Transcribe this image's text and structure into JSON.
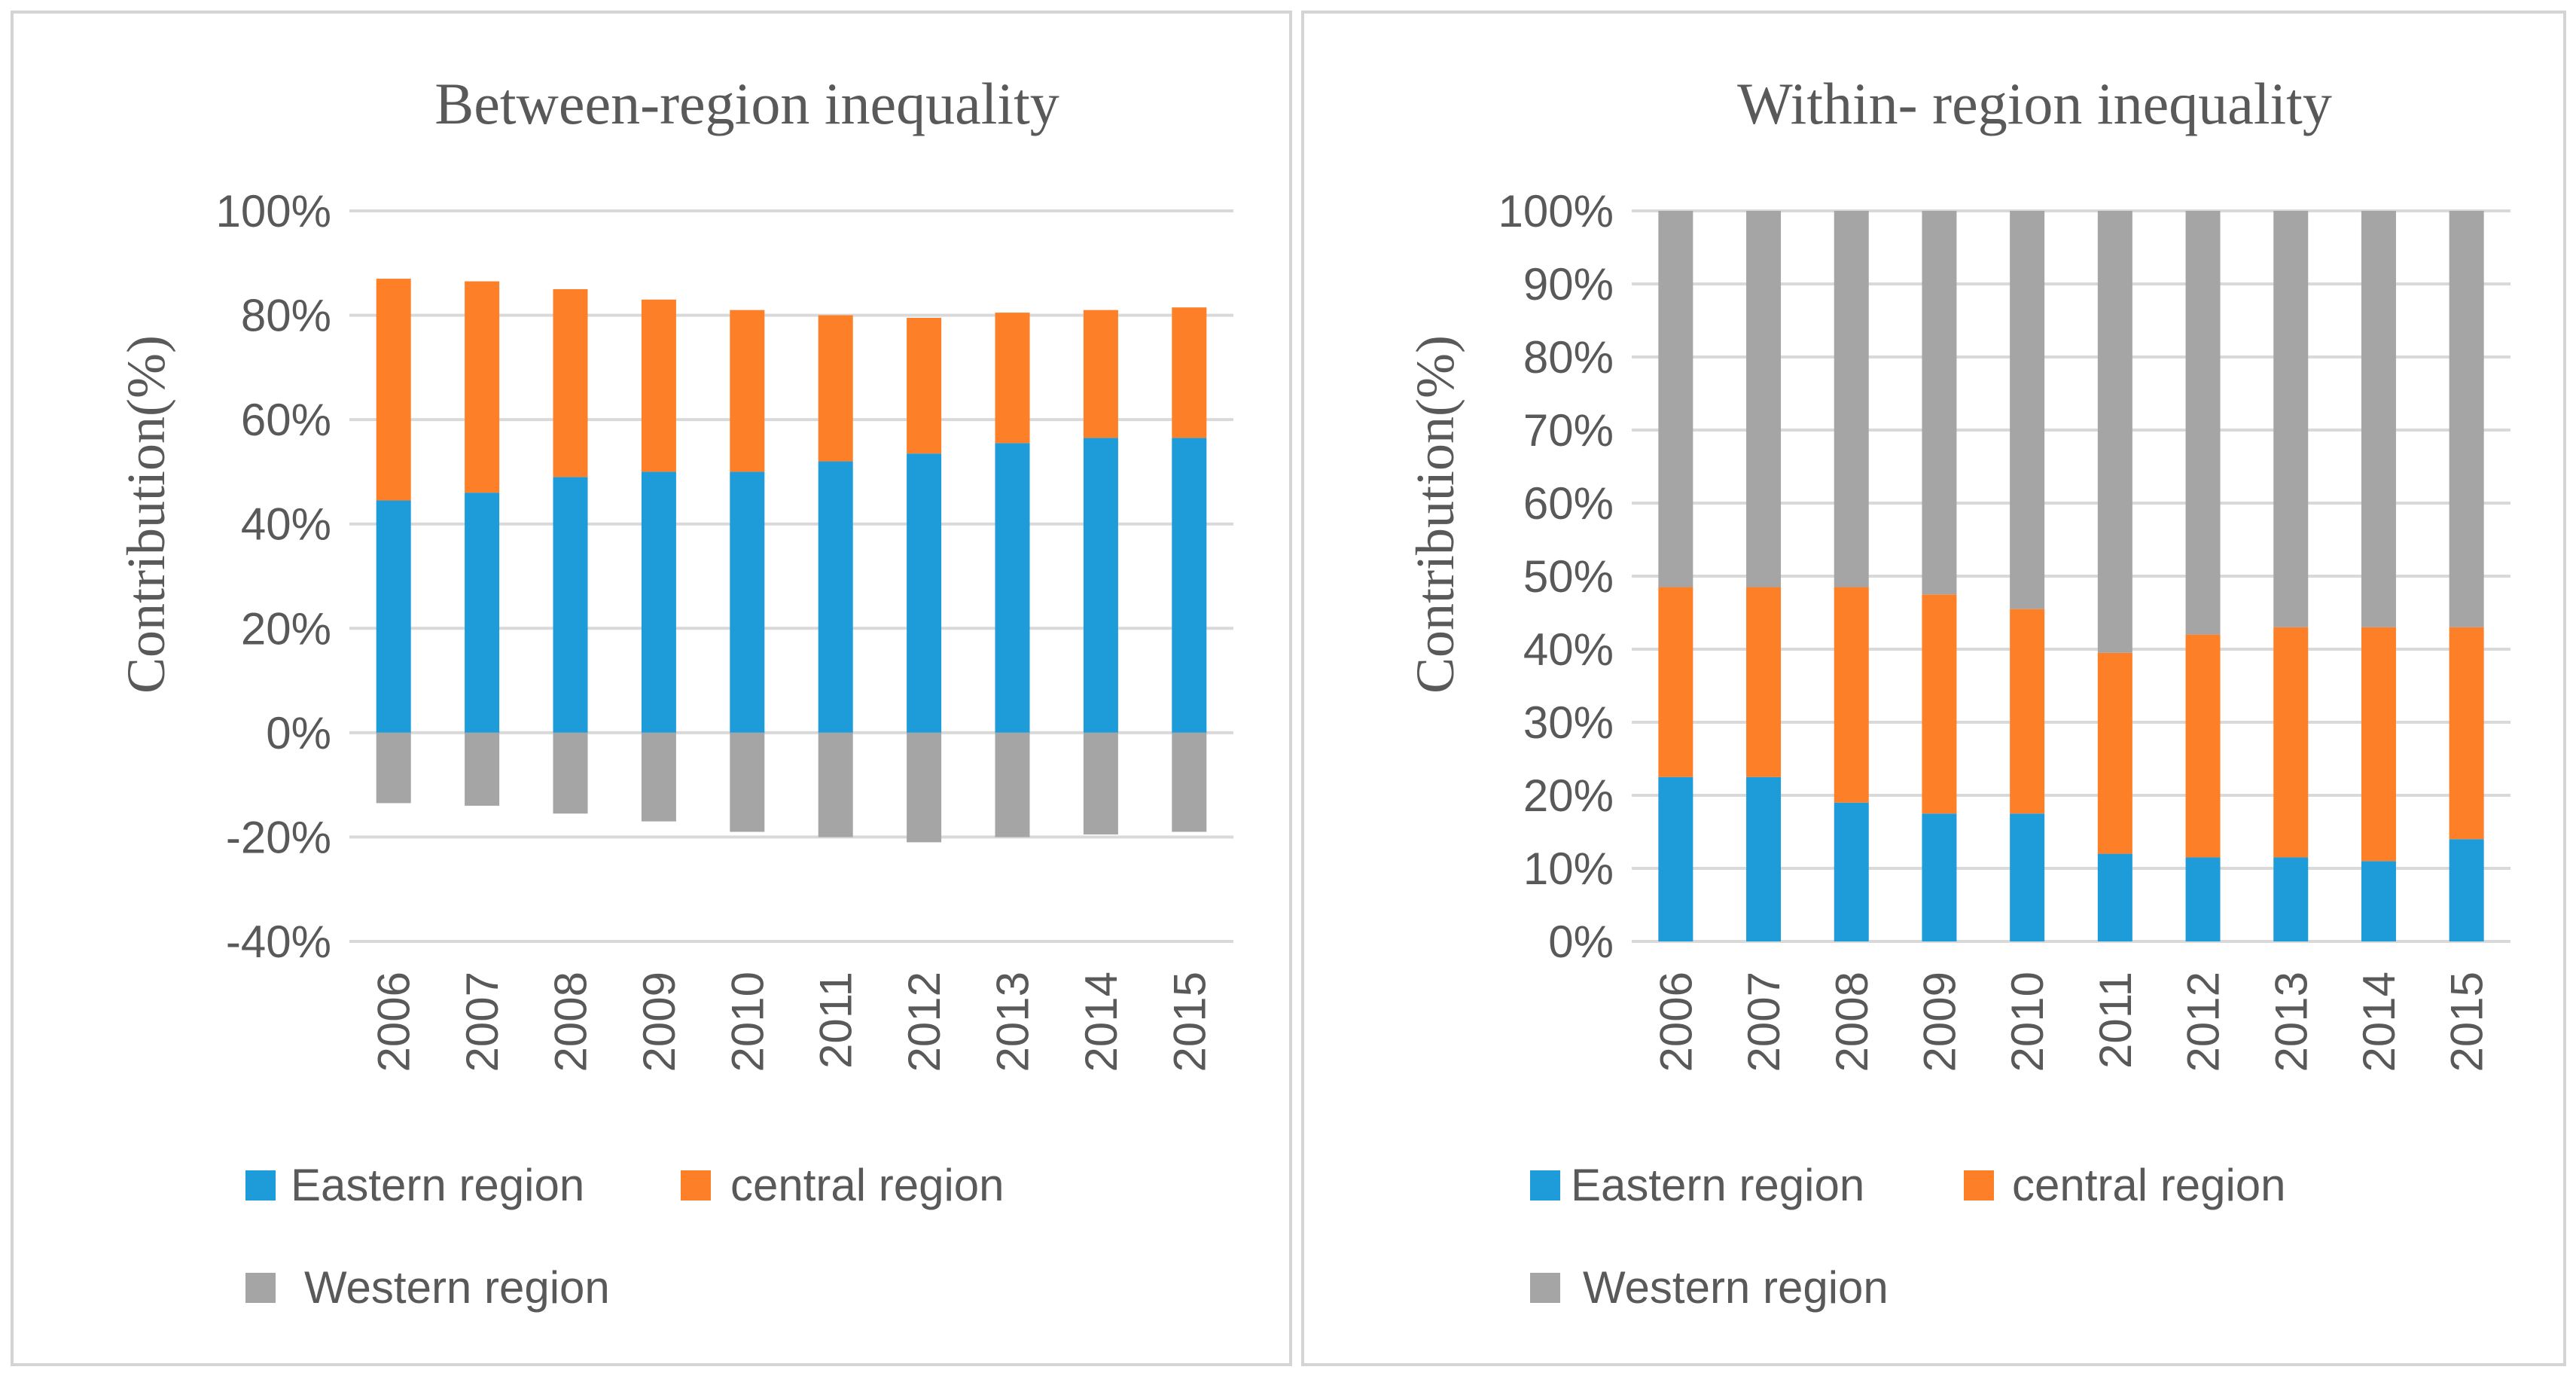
{
  "colors": {
    "eastern": "#1e9cd9",
    "central": "#fd7f28",
    "western": "#a5a5a5",
    "grid": "#d9d9d9",
    "text": "#595959"
  },
  "chart_data": [
    {
      "type": "bar",
      "stacked": true,
      "title": "Between-region inequality",
      "ylabel": "Contribution(%)",
      "xlabel": "",
      "categories": [
        "2006",
        "2007",
        "2008",
        "2009",
        "2010",
        "2011",
        "2012",
        "2013",
        "2014",
        "2015"
      ],
      "ylim": [
        -40,
        100
      ],
      "yticks": [
        -40,
        -20,
        0,
        20,
        40,
        60,
        80,
        100
      ],
      "ytick_labels": [
        "-40%",
        "-20%",
        "0%",
        "20%",
        "40%",
        "60%",
        "80%",
        "100%"
      ],
      "series": [
        {
          "name": "Eastern region",
          "color_key": "eastern",
          "values": [
            44.5,
            46,
            49,
            50,
            50,
            52,
            53.5,
            55.5,
            56.5,
            56.5
          ]
        },
        {
          "name": "central region",
          "color_key": "central",
          "values": [
            42.5,
            40.5,
            36,
            33,
            31,
            28,
            26,
            25,
            24.5,
            25
          ]
        },
        {
          "name": "Western region",
          "color_key": "western",
          "values": [
            -13.5,
            -14,
            -15.5,
            -17,
            -19,
            -20,
            -21,
            -20,
            -19.5,
            -19
          ]
        }
      ],
      "legend": [
        "Eastern region",
        "central region",
        "Western region"
      ]
    },
    {
      "type": "bar",
      "stacked": true,
      "title": "Within- region inequality",
      "ylabel": "Contribution(%)",
      "xlabel": "",
      "categories": [
        "2006",
        "2007",
        "2008",
        "2009",
        "2010",
        "2011",
        "2012",
        "2013",
        "2014",
        "2015"
      ],
      "ylim": [
        0,
        100
      ],
      "yticks": [
        0,
        10,
        20,
        30,
        40,
        50,
        60,
        70,
        80,
        90,
        100
      ],
      "ytick_labels": [
        "0%",
        "10%",
        "20%",
        "30%",
        "40%",
        "50%",
        "60%",
        "70%",
        "80%",
        "90%",
        "100%"
      ],
      "series": [
        {
          "name": "Eastern region",
          "color_key": "eastern",
          "values": [
            22.5,
            22.5,
            19,
            17.5,
            17.5,
            12,
            11.5,
            11.5,
            11,
            14
          ]
        },
        {
          "name": "central region",
          "color_key": "central",
          "values": [
            26,
            26,
            29.5,
            30,
            28,
            27.5,
            30.5,
            31.5,
            32,
            29
          ]
        },
        {
          "name": "Western region",
          "color_key": "western",
          "values": [
            51.5,
            51.5,
            51.5,
            52.5,
            54.5,
            60.5,
            58,
            57,
            57,
            57
          ]
        }
      ],
      "legend": [
        "Eastern region",
        "central region",
        "Western region"
      ]
    }
  ]
}
